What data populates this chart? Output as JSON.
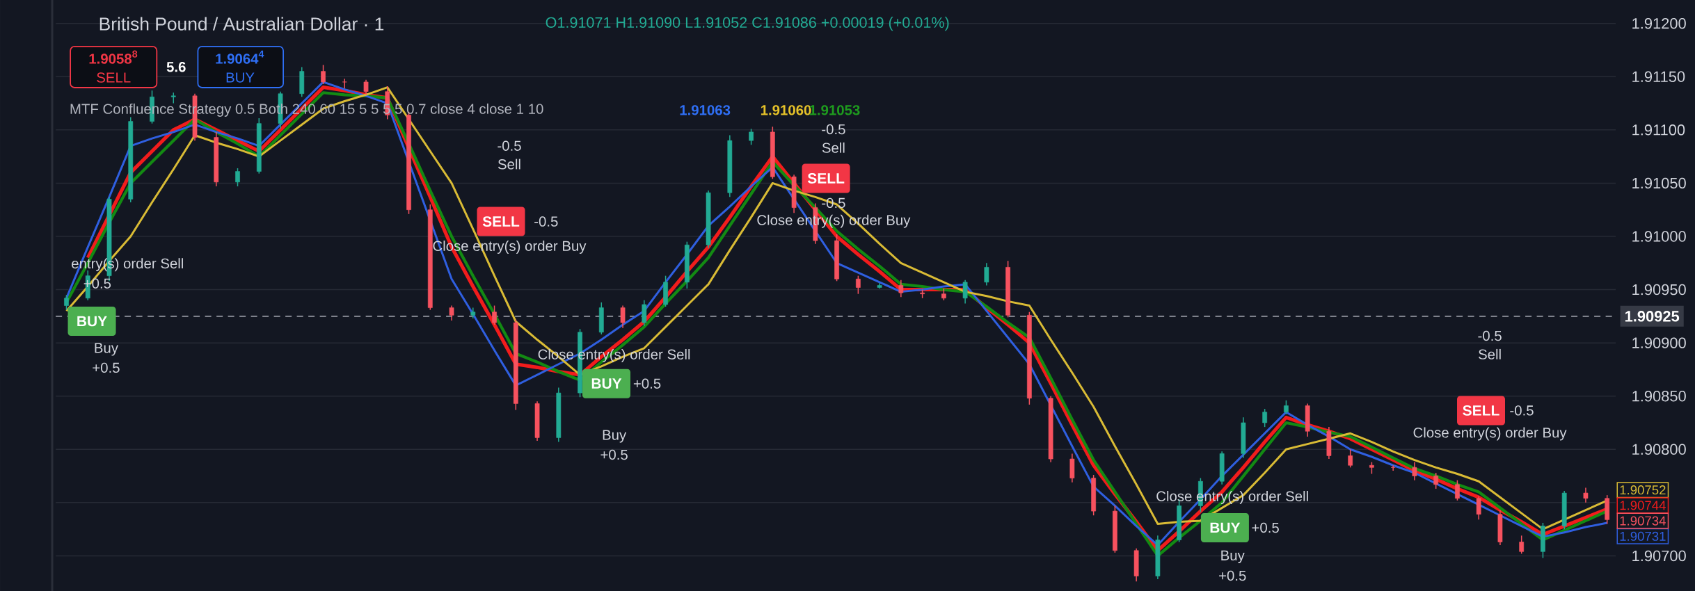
{
  "chart_data": {
    "type": "candlestick",
    "title": "British Pound / Australian Dollar · 1",
    "subtitle": "O1.91071 H1.91090 L1.91052 C1.91086 +0.00019 (+0.01%)",
    "categories": [
      null,
      null,
      null,
      null,
      null,
      null,
      null,
      null,
      null,
      null,
      null,
      null,
      null,
      null,
      null,
      null,
      null,
      null,
      null,
      null,
      null,
      null,
      null,
      null,
      null,
      null,
      null,
      null,
      null,
      null,
      null,
      null,
      null,
      null,
      null,
      null,
      null,
      null,
      null,
      null,
      null,
      null,
      null,
      null,
      null,
      null,
      null,
      null,
      null,
      null,
      null,
      null,
      null,
      null,
      null,
      null,
      null,
      null,
      null,
      null,
      null,
      null,
      null,
      null,
      null,
      null,
      null,
      null,
      null,
      null,
      null,
      null,
      null
    ],
    "ohlc": [
      [
        1.90935,
        1.90945,
        1.90931,
        1.90942
      ],
      [
        1.90942,
        1.90968,
        1.9094,
        1.90963
      ],
      [
        1.90963,
        1.91037,
        1.90958,
        1.91035
      ],
      [
        1.91035,
        1.91112,
        1.91032,
        1.91108
      ],
      [
        1.91108,
        1.91137,
        1.91106,
        1.91131
      ],
      [
        1.91131,
        1.91135,
        1.91125,
        1.91132
      ],
      [
        1.91132,
        1.91134,
        1.9109,
        1.91093
      ],
      [
        1.91093,
        1.91098,
        1.91047,
        1.91051
      ],
      [
        1.91051,
        1.91064,
        1.91047,
        1.91061
      ],
      [
        1.91061,
        1.91111,
        1.91059,
        1.91106
      ],
      [
        1.91106,
        1.91136,
        1.91101,
        1.91134
      ],
      [
        1.91134,
        1.91159,
        1.91131,
        1.91155
      ],
      [
        1.91155,
        1.91161,
        1.91143,
        1.91145
      ],
      [
        1.91145,
        1.91148,
        1.91139,
        1.91145
      ],
      [
        1.91145,
        1.91147,
        1.91133,
        1.91136
      ],
      [
        1.91136,
        1.91141,
        1.9111,
        1.91114
      ],
      [
        1.91114,
        1.91117,
        1.91021,
        1.91025
      ],
      [
        1.91025,
        1.9103,
        1.90931,
        1.90933
      ],
      [
        1.90933,
        1.90935,
        1.90921,
        1.90926
      ],
      [
        1.90926,
        1.90933,
        1.90923,
        1.90929
      ],
      [
        1.90929,
        1.90935,
        1.90917,
        1.90919
      ],
      [
        1.90919,
        1.90922,
        1.90837,
        1.90843
      ],
      [
        1.90843,
        1.90845,
        1.90808,
        1.90811
      ],
      [
        1.90811,
        1.90858,
        1.90807,
        1.90853
      ],
      [
        1.90853,
        1.90913,
        1.90849,
        1.9091
      ],
      [
        1.9091,
        1.90938,
        1.90908,
        1.90933
      ],
      [
        1.90933,
        1.90935,
        1.90914,
        1.90919
      ],
      [
        1.90919,
        1.9094,
        1.90916,
        1.90936
      ],
      [
        1.90936,
        1.90963,
        1.90934,
        1.90957
      ],
      [
        1.90957,
        1.90995,
        1.90951,
        1.90992
      ],
      [
        1.90992,
        1.91043,
        1.90989,
        1.91041
      ],
      [
        1.91041,
        1.91095,
        1.91037,
        1.9109
      ],
      [
        1.9109,
        1.91101,
        1.91086,
        1.91098
      ],
      [
        1.91098,
        1.91103,
        1.91054,
        1.91056
      ],
      [
        1.91056,
        1.91058,
        1.91022,
        1.91027
      ],
      [
        1.91027,
        1.91031,
        1.90993,
        1.90996
      ],
      [
        1.90996,
        1.91002,
        1.90958,
        1.9096
      ],
      [
        1.9096,
        1.90963,
        1.90946,
        1.90952
      ],
      [
        1.90952,
        1.90956,
        1.90951,
        1.90954
      ],
      [
        1.90954,
        1.90959,
        1.90943,
        1.90947
      ],
      [
        1.90947,
        1.9095,
        1.90942,
        1.90946
      ],
      [
        1.90946,
        1.90951,
        1.9094,
        1.90942
      ],
      [
        1.90942,
        1.90959,
        1.90937,
        1.90957
      ],
      [
        1.90957,
        1.90975,
        1.90954,
        1.90971
      ],
      [
        1.90971,
        1.90977,
        1.90924,
        1.90926
      ],
      [
        1.90926,
        1.90929,
        1.90842,
        1.90848
      ],
      [
        1.90848,
        1.9085,
        1.90788,
        1.90791
      ],
      [
        1.90791,
        1.90796,
        1.90769,
        1.90773
      ],
      [
        1.90773,
        1.90776,
        1.90738,
        1.90742
      ],
      [
        1.90742,
        1.90747,
        1.90703,
        1.90705
      ],
      [
        1.90705,
        1.90707,
        1.90676,
        1.90681
      ],
      [
        1.90681,
        1.90719,
        1.90678,
        1.90715
      ],
      [
        1.90715,
        1.90753,
        1.90713,
        1.90747
      ],
      [
        1.90747,
        1.90773,
        1.90741,
        1.9077
      ],
      [
        1.9077,
        1.90798,
        1.90767,
        1.90796
      ],
      [
        1.90796,
        1.9083,
        1.90792,
        1.90825
      ],
      [
        1.90825,
        1.90838,
        1.90821,
        1.90835
      ],
      [
        1.90835,
        1.90846,
        1.90833,
        1.90841
      ],
      [
        1.90841,
        1.90843,
        1.90812,
        1.90817
      ],
      [
        1.90817,
        1.90821,
        1.90791,
        1.90794
      ],
      [
        1.90794,
        1.908,
        1.90783,
        1.90785
      ],
      [
        1.90785,
        1.90788,
        1.90777,
        1.90783
      ],
      [
        1.90783,
        1.90785,
        1.9078,
        1.90783
      ],
      [
        1.90783,
        1.90788,
        1.90771,
        1.90775
      ],
      [
        1.90775,
        1.90778,
        1.90763,
        1.90767
      ],
      [
        1.90767,
        1.90771,
        1.90752,
        1.90754
      ],
      [
        1.90754,
        1.90756,
        1.90734,
        1.90739
      ],
      [
        1.90739,
        1.90743,
        1.9071,
        1.90713
      ],
      [
        1.90713,
        1.90719,
        1.90702,
        1.90704
      ],
      [
        1.90704,
        1.90731,
        1.90698,
        1.90728
      ],
      [
        1.90728,
        1.90761,
        1.90725,
        1.90759
      ],
      [
        1.90759,
        1.90764,
        1.9075,
        1.90754
      ],
      [
        1.90754,
        1.90757,
        1.9073,
        1.90734
      ]
    ],
    "colors": [
      "#22ab94",
      "#22ab94",
      "#22ab94",
      "#22ab94",
      "#22ab94",
      "#22ab94",
      "#f7525f",
      "#f7525f",
      "#22ab94",
      "#22ab94",
      "#22ab94",
      "#22ab94",
      "#f7525f",
      "#f7525f",
      "#f7525f",
      "#f7525f",
      "#f7525f",
      "#f7525f",
      "#f7525f",
      "#22ab94",
      "#f7525f",
      "#f7525f",
      "#f7525f",
      "#22ab94",
      "#22ab94",
      "#22ab94",
      "#f7525f",
      "#22ab94",
      "#22ab94",
      "#22ab94",
      "#22ab94",
      "#22ab94",
      "#22ab94",
      "#f7525f",
      "#f7525f",
      "#f7525f",
      "#f7525f",
      "#f7525f",
      "#22ab94",
      "#f7525f",
      "#f7525f",
      "#f7525f",
      "#22ab94",
      "#22ab94",
      "#f7525f",
      "#f7525f",
      "#f7525f",
      "#f7525f",
      "#f7525f",
      "#f7525f",
      "#f7525f",
      "#22ab94",
      "#22ab94",
      "#22ab94",
      "#22ab94",
      "#22ab94",
      "#22ab94",
      "#22ab94",
      "#f7525f",
      "#f7525f",
      "#f7525f",
      "#f7525f",
      "#f7525f",
      "#f7525f",
      "#f7525f",
      "#f7525f",
      "#f7525f",
      "#f7525f",
      "#f7525f",
      "#22ab94",
      "#22ab94",
      "#f7525f",
      "#f7525f"
    ],
    "series": [
      {
        "type": "line",
        "color": "#f21c1c",
        "values": [
          null,
          1.9098,
          1.9102,
          1.9106,
          1.9108,
          1.911,
          1.9111,
          1.911,
          1.9109,
          1.9108,
          1.911,
          1.9112,
          1.9114,
          1.91137,
          1.91133,
          1.9113,
          1.91083,
          1.91037,
          1.9099,
          1.90953,
          1.90917,
          1.9088,
          1.90877,
          1.90873,
          1.9087,
          1.90887,
          1.90903,
          1.9092,
          1.90943,
          1.90967,
          1.9099,
          1.91018,
          1.91047,
          1.91075,
          1.9105,
          1.91025,
          1.91,
          1.90983,
          1.90967,
          1.9095,
          1.9095,
          1.9095,
          1.9095,
          1.90933,
          1.90917,
          1.909,
          1.90862,
          1.90823,
          1.90785,
          1.90758,
          1.90732,
          1.90705,
          1.90723,
          1.90742,
          1.9076,
          1.90783,
          1.90807,
          1.9083,
          1.90823,
          1.90817,
          1.9081,
          1.908,
          1.9079,
          1.9078,
          1.90772,
          1.90763,
          1.90755,
          1.90743,
          1.90732,
          1.9072,
          1.90728,
          1.90736,
          1.90744
        ],
        "value_labels": [
          null,
          null,
          null,
          null,
          null,
          null,
          null,
          null,
          null,
          null,
          null,
          null,
          null,
          null,
          null,
          null,
          null,
          null,
          null,
          null,
          null,
          null,
          null,
          null,
          null,
          null,
          null,
          null,
          null,
          null,
          null,
          null,
          null,
          null,
          null,
          null,
          null,
          null,
          null,
          null,
          null,
          null,
          null,
          null,
          null,
          null,
          null,
          null,
          null,
          null,
          null,
          null,
          null,
          null,
          null,
          null,
          null,
          null,
          null,
          null,
          null,
          null,
          null,
          null,
          null,
          null,
          null,
          null,
          null,
          null,
          null,
          null,
          "1.90744"
        ]
      },
      {
        "type": "line",
        "color": "#2f5fe0",
        "values": [
          1.90942,
          1.9099,
          1.91037,
          1.91085,
          1.91092,
          1.91098,
          1.91105,
          1.91098,
          1.91092,
          1.91085,
          1.91105,
          1.91125,
          1.91145,
          1.91138,
          1.91132,
          1.91125,
          null,
          null,
          1.9096,
          1.90927,
          1.90893,
          1.9086,
          1.9087,
          1.9088,
          1.9089,
          1.90903,
          1.90917,
          1.9093,
          1.90957,
          1.90983,
          1.9101,
          1.91028,
          1.91047,
          1.91065,
          1.91035,
          1.91005,
          1.90975,
          1.90966,
          1.90957,
          1.90948,
          1.9095,
          1.90953,
          1.90955,
          1.9093,
          1.90905,
          1.9088,
          null,
          1.90803,
          1.90765,
          1.90747,
          1.90728,
          1.9071,
          1.90732,
          1.90753,
          1.90775,
          1.90795,
          1.90815,
          1.90835,
          1.90823,
          1.90812,
          1.908,
          1.90793,
          1.90785,
          1.90778,
          1.90768,
          1.90758,
          1.90748,
          1.90738,
          1.90728,
          1.90718,
          1.90722,
          1.90727,
          1.90731
        ],
        "value_labels": [
          null,
          null,
          null,
          null,
          null,
          null,
          null,
          null,
          null,
          null,
          null,
          null,
          null,
          null,
          null,
          null,
          null,
          null,
          null,
          null,
          null,
          null,
          null,
          null,
          null,
          null,
          null,
          null,
          null,
          null,
          null,
          null,
          null,
          null,
          null,
          null,
          null,
          null,
          null,
          null,
          null,
          null,
          null,
          null,
          null,
          null,
          null,
          null,
          null,
          null,
          null,
          null,
          null,
          null,
          null,
          null,
          null,
          null,
          null,
          null,
          null,
          null,
          null,
          null,
          null,
          null,
          null,
          null,
          null,
          null,
          null,
          null,
          "1.90731"
        ]
      },
      {
        "type": "line",
        "color": "#138a13",
        "values": [
          1.90938,
          1.90975,
          1.91013,
          1.9105,
          1.9107,
          1.9109,
          1.9111,
          1.91098,
          1.91087,
          1.91075,
          1.91095,
          1.91115,
          1.91135,
          1.91133,
          1.91132,
          1.9113,
          1.91087,
          1.91043,
          1.91,
          1.90963,
          1.90927,
          1.9089,
          1.90882,
          1.90873,
          1.90865,
          1.90882,
          1.90898,
          1.90915,
          1.90937,
          1.90958,
          1.9098,
          1.9101,
          1.9104,
          1.9107,
          1.91048,
          1.91027,
          1.91005,
          1.90988,
          1.90972,
          1.90955,
          1.90953,
          1.9095,
          1.90948,
          1.90934,
          1.90919,
          1.90905,
          1.90867,
          1.90828,
          1.9079,
          1.9076,
          1.9073,
          1.907,
          1.90717,
          1.90733,
          1.9075,
          1.90775,
          1.908,
          1.90825,
          1.90821,
          1.90816,
          1.90812,
          1.90802,
          1.90792,
          1.90782,
          1.90775,
          1.90767,
          1.9076,
          1.90745,
          1.9073,
          1.90715,
          1.90724,
          1.90733,
          1.90742
        ]
      },
      {
        "type": "line",
        "color": "#d9bb35",
        "values": [
          1.9093,
          1.90953,
          1.90977,
          1.91,
          1.91032,
          1.91063,
          1.91095,
          1.91088,
          1.91082,
          1.91075,
          1.9109,
          1.91105,
          1.9112,
          1.91127,
          1.91133,
          1.9114,
          1.9111,
          1.9108,
          1.9105,
          1.91007,
          1.90963,
          1.9092,
          1.90903,
          1.90887,
          1.9087,
          1.90878,
          1.90887,
          1.90895,
          1.90915,
          1.90935,
          1.90955,
          1.90987,
          1.91018,
          1.9105,
          1.91043,
          1.91037,
          1.9103,
          1.91012,
          1.90993,
          1.90975,
          1.90966,
          1.90957,
          1.90948,
          1.90944,
          1.90939,
          1.90935,
          1.90903,
          1.90872,
          1.9084,
          1.90803,
          1.90767,
          1.9073,
          1.90732,
          1.90733,
          null,
          1.90757,
          1.90778,
          1.908,
          1.90805,
          1.9081,
          1.90815,
          1.90807,
          1.90798,
          1.9079,
          1.90783,
          1.90777,
          1.9077,
          1.90755,
          1.9074,
          1.90725,
          1.90734,
          1.90743,
          1.90752
        ],
        "value_labels": [
          null,
          null,
          null,
          null,
          null,
          null,
          null,
          null,
          null,
          null,
          null,
          null,
          null,
          null,
          null,
          null,
          null,
          null,
          null,
          null,
          null,
          null,
          null,
          null,
          null,
          null,
          null,
          null,
          null,
          null,
          null,
          null,
          null,
          null,
          null,
          null,
          null,
          null,
          null,
          null,
          null,
          null,
          null,
          null,
          null,
          null,
          null,
          null,
          null,
          null,
          null,
          null,
          null,
          null,
          null,
          null,
          null,
          null,
          null,
          null,
          null,
          null,
          null,
          null,
          null,
          null,
          null,
          null,
          null,
          null,
          null,
          null,
          "1.90752"
        ]
      }
    ],
    "ylim": [
      1.90667,
      1.91222
    ],
    "yticks": [
      {
        "value": 1.907,
        "label": "1.90700"
      },
      {
        "value": 1.9075,
        "label": null
      },
      {
        "value": 1.908,
        "label": "1.90800"
      },
      {
        "value": 1.9085,
        "label": "1.90850"
      },
      {
        "value": 1.909,
        "label": "1.90900"
      },
      {
        "value": 1.9095,
        "label": "1.90950"
      },
      {
        "value": 1.91,
        "label": "1.91000"
      },
      {
        "value": 1.9105,
        "label": "1.91050"
      },
      {
        "value": 1.911,
        "label": "1.91100"
      },
      {
        "value": 1.9115,
        "label": "1.91150"
      },
      {
        "value": 1.912,
        "label": "1.91200"
      }
    ],
    "grid": "y",
    "ref_lines": [
      {
        "axis": "y",
        "value": 1.90925,
        "label": "1.90925",
        "color": "#9598a1",
        "line_style": "dashed"
      }
    ],
    "annotations": [
      "MTF Confluence Strategy 0.5 Both 240 60 15 5 5 5 5 0.7 close 4 close 1 10",
      "1.91063",
      "1.91060",
      "1.91053",
      "1.9058$^{8}$",
      "SELL",
      "5.6",
      "1.9064$^{4}$",
      "BUY",
      "entry(s) order Sell",
      "+0.5",
      "BUY",
      "Buy",
      "+0.5",
      "-0.5",
      "Sell",
      "SELL",
      "-0.5",
      "Close entry(s) order Buy",
      "Close entry(s) order Sell",
      "BUY",
      "+0.5",
      "Buy",
      "+0.5",
      "-0.5",
      "Sell",
      "SELL",
      "-0.5",
      "Close entry(s) order Buy",
      "Close entry(s) order Sell",
      "BUY",
      "+0.5",
      "Buy",
      "+0.5",
      "-0.5",
      "Sell",
      "SELL",
      "-0.5",
      "Close entry(s) order Buy",
      "1.90734"
    ]
  }
}
